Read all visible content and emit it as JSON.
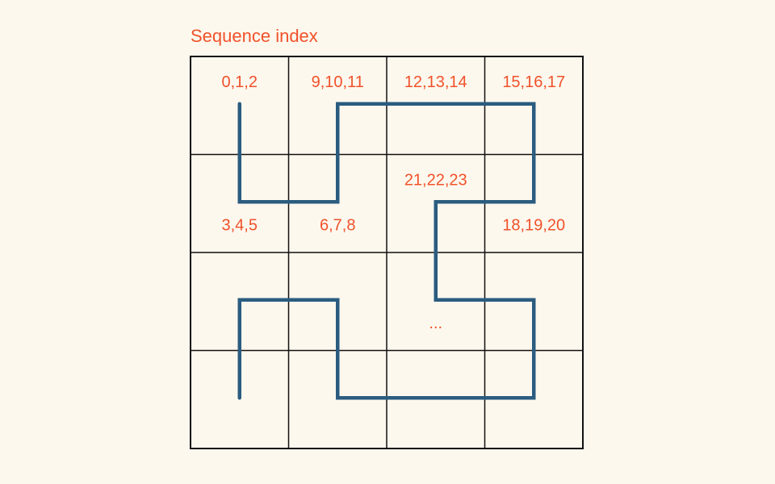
{
  "title": "Sequence index",
  "colors": {
    "background": "#fdf8ee",
    "text": "#f0522a",
    "grid": "#111111",
    "path": "#2b5c80"
  },
  "grid": {
    "rows": 4,
    "cols": 4
  },
  "labels": [
    {
      "text": "0,1,2",
      "cell": [
        0,
        0
      ],
      "position": "top"
    },
    {
      "text": "9,10,11",
      "cell": [
        0,
        1
      ],
      "position": "top"
    },
    {
      "text": "12,13,14",
      "cell": [
        0,
        2
      ],
      "position": "top"
    },
    {
      "text": "15,16,17",
      "cell": [
        0,
        3
      ],
      "position": "top"
    },
    {
      "text": "21,22,23",
      "cell": [
        1,
        2
      ],
      "position": "upper"
    },
    {
      "text": "3,4,5",
      "cell": [
        1,
        0
      ],
      "position": "lower"
    },
    {
      "text": "6,7,8",
      "cell": [
        1,
        1
      ],
      "position": "lower"
    },
    {
      "text": "18,19,20",
      "cell": [
        1,
        3
      ],
      "position": "lower"
    },
    {
      "text": "...",
      "cell": [
        2,
        2
      ],
      "position": "lower"
    }
  ],
  "path_cells": [
    [
      0,
      0
    ],
    [
      1,
      0
    ],
    [
      1,
      1
    ],
    [
      0,
      1
    ],
    [
      0,
      2
    ],
    [
      0,
      3
    ],
    [
      1,
      3
    ],
    [
      1,
      2
    ],
    [
      2,
      2
    ],
    [
      2,
      3
    ],
    [
      3,
      3
    ],
    [
      3,
      2
    ],
    [
      3,
      1
    ],
    [
      2,
      1
    ],
    [
      2,
      0
    ],
    [
      3,
      0
    ]
  ]
}
